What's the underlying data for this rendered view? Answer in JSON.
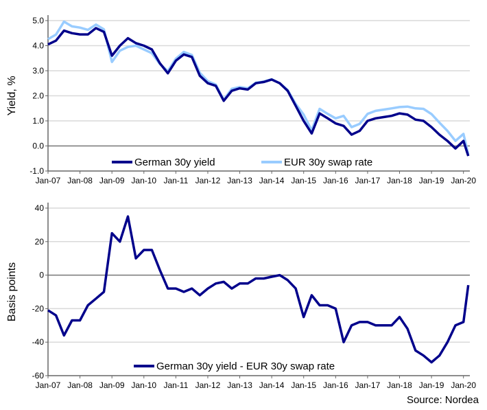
{
  "chart_data": [
    {
      "type": "line",
      "title": "",
      "xlabel": "",
      "ylabel": "Yield, %",
      "ylim": [
        -1.0,
        5.0
      ],
      "yticks": [
        "-1.0",
        "0.0",
        "1.0",
        "2.0",
        "3.0",
        "4.0",
        "5.0"
      ],
      "xticks": [
        "Jan-07",
        "Jan-08",
        "Jan-09",
        "Jan-10",
        "Jan-11",
        "Jan-12",
        "Jan-13",
        "Jan-14",
        "Jan-15",
        "Jan-16",
        "Jan-17",
        "Jan-18",
        "Jan-19",
        "Jan-20"
      ],
      "grid": true,
      "legend": "bottom-center",
      "x": [
        2007.0,
        2007.25,
        2007.5,
        2007.75,
        2008.0,
        2008.25,
        2008.5,
        2008.75,
        2009.0,
        2009.25,
        2009.5,
        2009.75,
        2010.0,
        2010.25,
        2010.5,
        2010.75,
        2011.0,
        2011.25,
        2011.5,
        2011.75,
        2012.0,
        2012.25,
        2012.5,
        2012.75,
        2013.0,
        2013.25,
        2013.5,
        2013.75,
        2014.0,
        2014.25,
        2014.5,
        2014.75,
        2015.0,
        2015.25,
        2015.5,
        2015.75,
        2016.0,
        2016.25,
        2016.5,
        2016.75,
        2017.0,
        2017.25,
        2017.5,
        2017.75,
        2018.0,
        2018.25,
        2018.5,
        2018.75,
        2019.0,
        2019.25,
        2019.5,
        2019.75,
        2020.0,
        2020.15
      ],
      "series": [
        {
          "name": "German 30y yield",
          "color": "#00008B",
          "values": [
            4.05,
            4.2,
            4.6,
            4.5,
            4.45,
            4.45,
            4.7,
            4.55,
            3.6,
            4.0,
            4.3,
            4.1,
            4.0,
            3.85,
            3.3,
            2.9,
            3.4,
            3.65,
            3.55,
            2.8,
            2.5,
            2.4,
            1.8,
            2.2,
            2.3,
            2.25,
            2.5,
            2.55,
            2.65,
            2.5,
            2.2,
            1.6,
            1.0,
            0.5,
            1.3,
            1.1,
            0.9,
            0.8,
            0.45,
            0.6,
            1.0,
            1.1,
            1.15,
            1.2,
            1.3,
            1.25,
            1.05,
            1.0,
            0.75,
            0.45,
            0.2,
            -0.1,
            0.2,
            -0.4
          ]
        },
        {
          "name": "EUR 30y swap rate",
          "color": "#99CCFF",
          "values": [
            4.26,
            4.44,
            4.96,
            4.77,
            4.72,
            4.63,
            4.84,
            4.65,
            3.35,
            3.8,
            3.95,
            4.0,
            3.85,
            3.7,
            3.27,
            2.98,
            3.48,
            3.75,
            3.63,
            2.92,
            2.58,
            2.45,
            1.84,
            2.28,
            2.35,
            2.3,
            2.52,
            2.57,
            2.66,
            2.5,
            2.23,
            1.68,
            1.25,
            0.62,
            1.48,
            1.28,
            1.1,
            1.2,
            0.75,
            0.88,
            1.28,
            1.4,
            1.45,
            1.5,
            1.55,
            1.57,
            1.5,
            1.48,
            1.27,
            0.93,
            0.6,
            0.2,
            0.48,
            -0.34
          ]
        }
      ]
    },
    {
      "type": "line",
      "title": "",
      "xlabel": "",
      "ylabel": "Basis points",
      "ylim": [
        -60,
        40
      ],
      "yticks": [
        "-60",
        "-40",
        "-20",
        "0",
        "20",
        "40"
      ],
      "xticks": [
        "Jan-07",
        "Jan-08",
        "Jan-09",
        "Jan-10",
        "Jan-11",
        "Jan-12",
        "Jan-13",
        "Jan-14",
        "Jan-15",
        "Jan-16",
        "Jan-17",
        "Jan-18",
        "Jan-19",
        "Jan-20"
      ],
      "grid": true,
      "legend": "bottom-center",
      "x": [
        2007.0,
        2007.25,
        2007.5,
        2007.75,
        2008.0,
        2008.25,
        2008.5,
        2008.75,
        2009.0,
        2009.25,
        2009.5,
        2009.75,
        2010.0,
        2010.25,
        2010.5,
        2010.75,
        2011.0,
        2011.25,
        2011.5,
        2011.75,
        2012.0,
        2012.25,
        2012.5,
        2012.75,
        2013.0,
        2013.25,
        2013.5,
        2013.75,
        2014.0,
        2014.25,
        2014.5,
        2014.75,
        2015.0,
        2015.25,
        2015.5,
        2015.75,
        2016.0,
        2016.25,
        2016.5,
        2016.75,
        2017.0,
        2017.25,
        2017.5,
        2017.75,
        2018.0,
        2018.25,
        2018.5,
        2018.75,
        2019.0,
        2019.25,
        2019.5,
        2019.75,
        2020.0,
        2020.15
      ],
      "series": [
        {
          "name": "German 30y yield - EUR 30y swap rate",
          "color": "#00008B",
          "values": [
            -21,
            -24,
            -36,
            -27,
            -27,
            -18,
            -14,
            -10,
            25,
            20,
            35,
            10,
            15,
            15,
            3,
            -8,
            -8,
            -10,
            -8,
            -12,
            -8,
            -5,
            -4,
            -8,
            -5,
            -5,
            -2,
            -2,
            -1,
            0,
            -3,
            -8,
            -25,
            -12,
            -18,
            -18,
            -20,
            -40,
            -30,
            -28,
            -28,
            -30,
            -30,
            -30,
            -25,
            -32,
            -45,
            -48,
            -52,
            -48,
            -40,
            -30,
            -28,
            -6
          ]
        }
      ]
    }
  ],
  "source": "Source: Nordea"
}
